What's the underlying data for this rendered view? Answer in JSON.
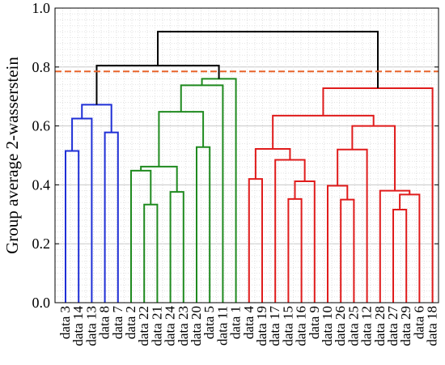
{
  "chart_data": {
    "type": "dendrogram",
    "ylabel": "Group average 2-wasserstein",
    "ylim": [
      0,
      1.0
    ],
    "yticks": [
      "0.0",
      "0.2",
      "0.4",
      "0.6",
      "0.8",
      "1.0"
    ],
    "grid": true,
    "cut_height": 0.785,
    "cut_color": "#e8642a",
    "leaves": [
      "data 3",
      "data 14",
      "data 13",
      "data 8",
      "data 7",
      "data 2",
      "data 22",
      "data 21",
      "data 24",
      "data 23",
      "data 20",
      "data 5",
      "data 11",
      "data 1",
      "data 4",
      "data 19",
      "data 17",
      "data 15",
      "data 16",
      "data 9",
      "data 10",
      "data 26",
      "data 25",
      "data 12",
      "data 28",
      "data 27",
      "data 29",
      "data 6",
      "data 18"
    ],
    "colors": {
      "blue": "#1f2fd6",
      "green": "#1f8a1f",
      "red": "#e01c1c",
      "black": "#000000"
    },
    "merges": [
      {
        "id": "B1",
        "a": "L0",
        "b": "L1",
        "h": 0.515,
        "color": "blue"
      },
      {
        "id": "B2",
        "a": "B1",
        "b": "L2",
        "h": 0.625,
        "color": "blue"
      },
      {
        "id": "B3",
        "a": "L3",
        "b": "L4",
        "h": 0.578,
        "color": "blue"
      },
      {
        "id": "B4",
        "a": "B2",
        "b": "B3",
        "h": 0.672,
        "color": "blue"
      },
      {
        "id": "G1",
        "a": "L6",
        "b": "L7",
        "h": 0.333,
        "color": "green"
      },
      {
        "id": "G2",
        "a": "L5",
        "b": "G1",
        "h": 0.448,
        "color": "green"
      },
      {
        "id": "G3",
        "a": "L8",
        "b": "L9",
        "h": 0.376,
        "color": "green"
      },
      {
        "id": "G4",
        "a": "G2",
        "b": "G3",
        "h": 0.462,
        "color": "green"
      },
      {
        "id": "G5",
        "a": "L10",
        "b": "L11",
        "h": 0.528,
        "color": "green"
      },
      {
        "id": "G6",
        "a": "G4",
        "b": "G5",
        "h": 0.648,
        "color": "green"
      },
      {
        "id": "G7",
        "a": "G6",
        "b": "L12",
        "h": 0.738,
        "color": "green"
      },
      {
        "id": "G8",
        "a": "G7",
        "b": "L13",
        "h": 0.76,
        "color": "green"
      },
      {
        "id": "R1",
        "a": "L17",
        "b": "L18",
        "h": 0.352,
        "color": "red"
      },
      {
        "id": "R2",
        "a": "R1",
        "b": "L19",
        "h": 0.412,
        "color": "red"
      },
      {
        "id": "R3",
        "a": "L16",
        "b": "R2",
        "h": 0.485,
        "color": "red"
      },
      {
        "id": "R4",
        "a": "L14",
        "b": "L15",
        "h": 0.42,
        "color": "red"
      },
      {
        "id": "R5",
        "a": "R4",
        "b": "R3",
        "h": 0.522,
        "color": "red"
      },
      {
        "id": "R6",
        "a": "L21",
        "b": "L22",
        "h": 0.35,
        "color": "red"
      },
      {
        "id": "R7",
        "a": "L20",
        "b": "R6",
        "h": 0.397,
        "color": "red"
      },
      {
        "id": "R8",
        "a": "R7",
        "b": "L23",
        "h": 0.52,
        "color": "red"
      },
      {
        "id": "R9",
        "a": "L25",
        "b": "L26",
        "h": 0.316,
        "color": "red"
      },
      {
        "id": "R10",
        "a": "R9",
        "b": "L27",
        "h": 0.367,
        "color": "red"
      },
      {
        "id": "R11",
        "a": "L24",
        "b": "R10",
        "h": 0.38,
        "color": "red"
      },
      {
        "id": "R12",
        "a": "R8",
        "b": "R11",
        "h": 0.6,
        "color": "red"
      },
      {
        "id": "R13",
        "a": "R5",
        "b": "R12",
        "h": 0.635,
        "color": "red"
      },
      {
        "id": "R14",
        "a": "R13",
        "b": "L28",
        "h": 0.728,
        "color": "red"
      },
      {
        "id": "K1",
        "a": "B4",
        "b": "G8",
        "h": 0.805,
        "color": "black"
      },
      {
        "id": "K2",
        "a": "K1",
        "b": "R14",
        "h": 0.92,
        "color": "black"
      }
    ]
  }
}
